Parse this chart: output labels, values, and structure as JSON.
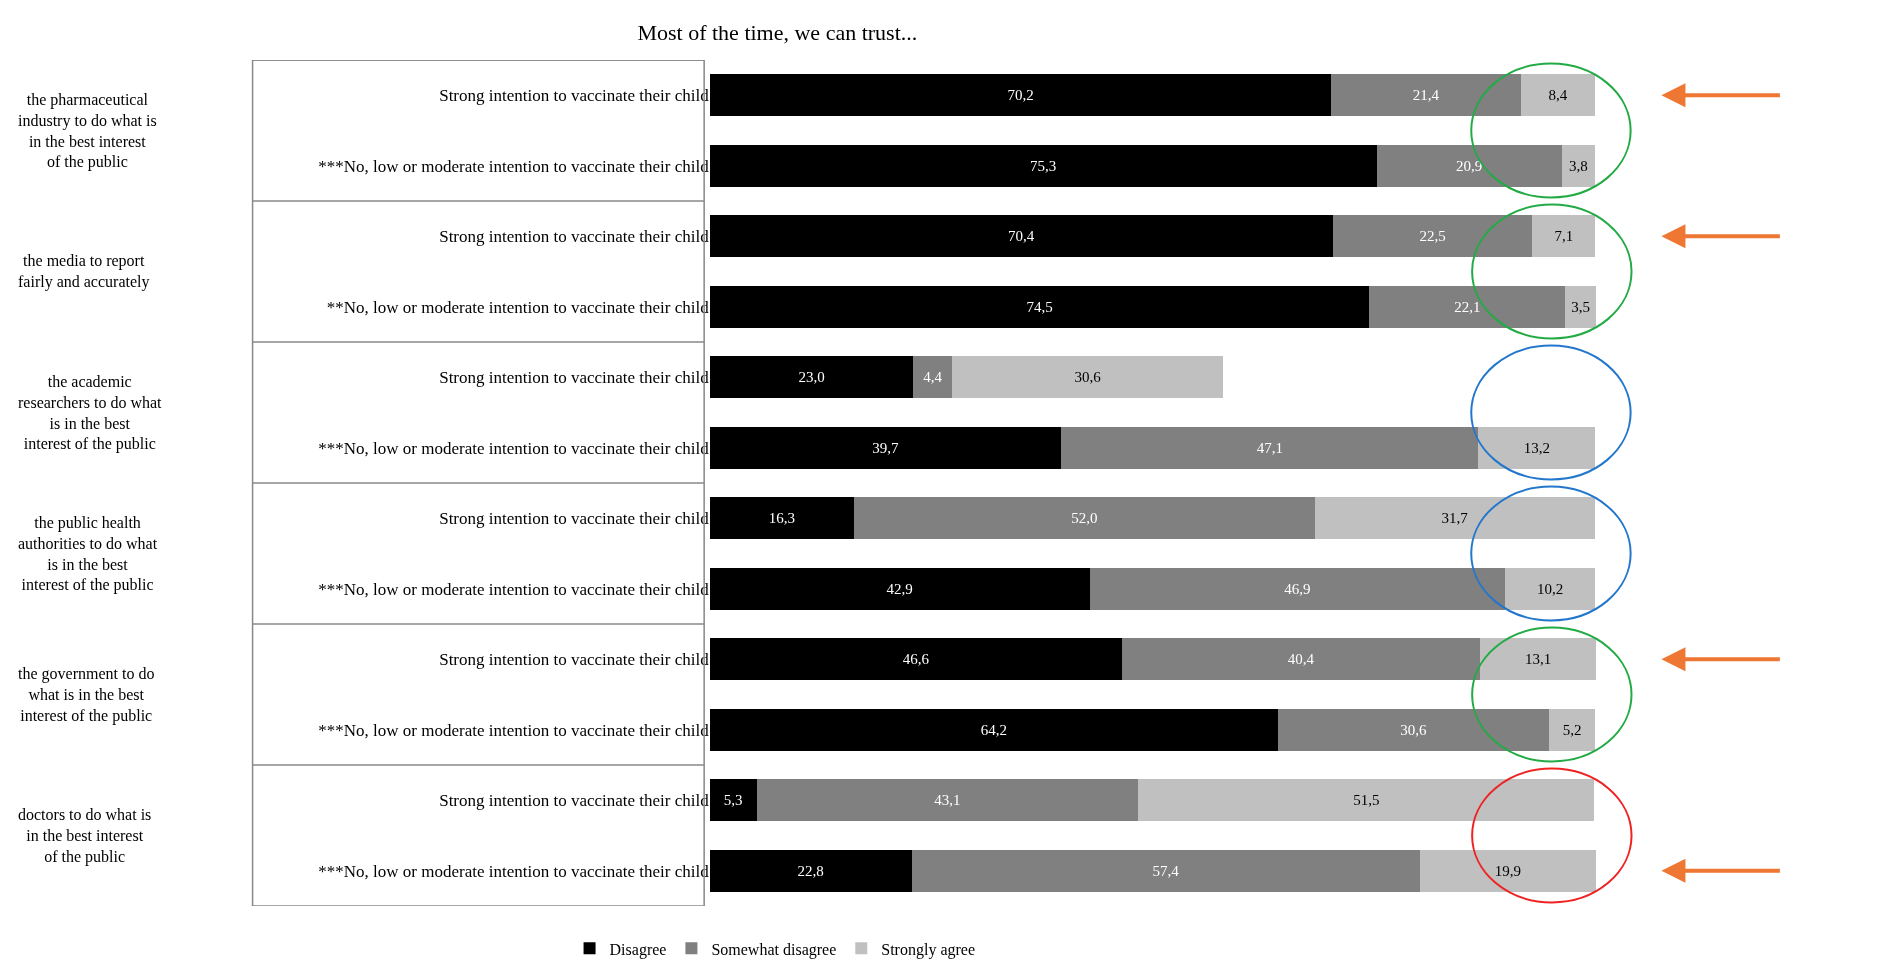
{
  "chart_data": {
    "type": "bar",
    "orientation": "horizontal",
    "stacked": true,
    "title": "Most of the time, we can trust...",
    "categories": [
      "Strong intention to vaccinate their child",
      "***No, low or moderate intention to vaccinate their child",
      "Strong intention to vaccinate their child",
      "**No, low or moderate intention to vaccinate their child",
      "Strong intention to vaccinate their child",
      "***No, low or moderate intention to vaccinate their child",
      "Strong intention to vaccinate their child",
      "***No, low or moderate intention to vaccinate their child",
      "Strong intention to vaccinate their child",
      "***No, low or moderate intention to vaccinate their child",
      "Strong intention to vaccinate their child",
      "***No, low or moderate intention to vaccinate their child"
    ],
    "series": [
      {
        "name": "Disagree",
        "color": "#000000",
        "values": [
          70.2,
          75.3,
          70.4,
          74.5,
          23.0,
          39.7,
          16.3,
          42.9,
          46.6,
          64.2,
          5.3,
          22.8
        ],
        "value_labels": [
          "70,2",
          "75,3",
          "70,4",
          "74,5",
          "23,0",
          "39,7",
          "16,3",
          "42,9",
          "46,6",
          "64,2",
          "5,3",
          "22,8"
        ]
      },
      {
        "name": "Somewhat disagree",
        "color": "#808080",
        "values": [
          21.4,
          20.9,
          22.5,
          22.1,
          4.4,
          47.1,
          52.0,
          46.9,
          40.4,
          30.6,
          43.1,
          57.4
        ],
        "value_labels": [
          "21,4",
          "20,9",
          "22,5",
          "22,1",
          "4,4",
          "47,1",
          "52,0",
          "46,9",
          "40,4",
          "30,6",
          "43,1",
          "57,4"
        ]
      },
      {
        "name": "Strongly agree",
        "color": "#c0c0c0",
        "values": [
          8.4,
          3.8,
          7.1,
          3.5,
          30.6,
          13.2,
          31.7,
          10.2,
          13.1,
          5.2,
          51.5,
          19.9
        ],
        "value_labels": [
          "8,4",
          "3,8",
          "7,1",
          "3,5",
          "30,6",
          "13,2",
          "31,7",
          "10,2",
          "13,1",
          "5,2",
          "51,5",
          "19,9"
        ]
      }
    ],
    "annotations": [
      "the pharmaceutical industry to do what is in the best interest of the public",
      "the media to report fairly and accurately",
      "the academic researchers to do what is in the best interest of the public",
      "the public health authorities to do what is in the best interest of the public",
      "the government to do what is in the best interest of the public",
      "doctors to do what is in the best interest of the public"
    ],
    "legend": "bottom"
  }
}
